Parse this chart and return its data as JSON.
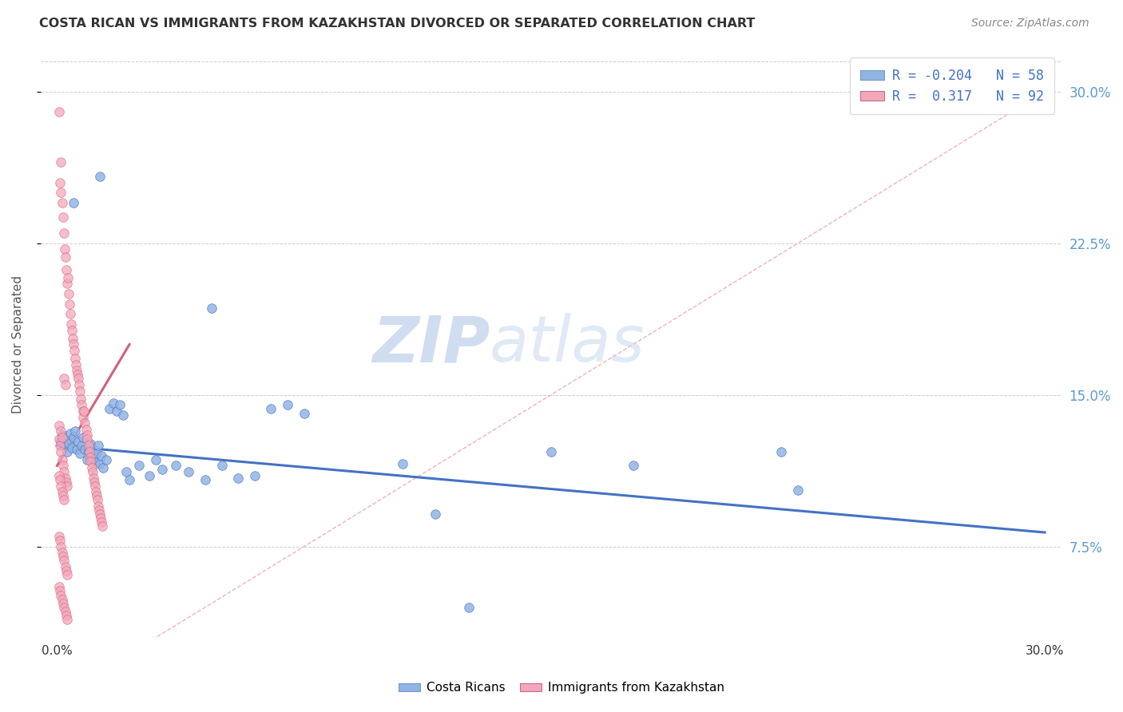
{
  "title": "COSTA RICAN VS IMMIGRANTS FROM KAZAKHSTAN DIVORCED OR SEPARATED CORRELATION CHART",
  "source": "Source: ZipAtlas.com",
  "ylabel": "Divorced or Separated",
  "ytick_labels": [
    "7.5%",
    "15.0%",
    "22.5%",
    "30.0%"
  ],
  "ytick_values": [
    7.5,
    15.0,
    22.5,
    30.0
  ],
  "xrange": [
    0.0,
    30.0
  ],
  "yrange": [
    3.0,
    32.0
  ],
  "ymin_plot": 3.0,
  "ymax_plot": 32.0,
  "legend_blue_R": "R = -0.204",
  "legend_blue_N": "N = 58",
  "legend_pink_R": "R =  0.317",
  "legend_pink_N": "N = 92",
  "legend_label_blue": "Costa Ricans",
  "legend_label_pink": "Immigrants from Kazakhstan",
  "color_blue": "#92B4E3",
  "color_pink": "#F4A7B9",
  "color_trend_blue": "#4472C4",
  "color_trend_pink": "#D4607A",
  "color_diagonal": "#E8A0B0",
  "watermark_zip": "ZIP",
  "watermark_atlas": "atlas",
  "blue_trend_x": [
    0.0,
    30.0
  ],
  "blue_trend_y": [
    12.5,
    8.2
  ],
  "pink_trend_x": [
    0.0,
    2.2
  ],
  "pink_trend_y": [
    11.5,
    17.5
  ],
  "blue_points": [
    [
      0.1,
      12.7
    ],
    [
      0.15,
      13.0
    ],
    [
      0.2,
      12.5
    ],
    [
      0.25,
      12.8
    ],
    [
      0.3,
      12.2
    ],
    [
      0.35,
      12.6
    ],
    [
      0.4,
      13.1
    ],
    [
      0.45,
      12.4
    ],
    [
      0.5,
      12.9
    ],
    [
      0.55,
      13.2
    ],
    [
      0.6,
      12.3
    ],
    [
      0.65,
      12.7
    ],
    [
      0.7,
      12.1
    ],
    [
      0.75,
      12.5
    ],
    [
      0.8,
      12.9
    ],
    [
      0.85,
      12.3
    ],
    [
      0.9,
      11.8
    ],
    [
      0.95,
      12.2
    ],
    [
      1.0,
      12.6
    ],
    [
      1.05,
      11.9
    ],
    [
      1.1,
      12.3
    ],
    [
      1.15,
      11.7
    ],
    [
      1.2,
      12.1
    ],
    [
      1.25,
      12.5
    ],
    [
      1.3,
      11.6
    ],
    [
      1.35,
      12.0
    ],
    [
      1.4,
      11.4
    ],
    [
      1.5,
      11.8
    ],
    [
      1.6,
      14.3
    ],
    [
      1.7,
      14.6
    ],
    [
      1.8,
      14.2
    ],
    [
      1.9,
      14.5
    ],
    [
      2.0,
      14.0
    ],
    [
      2.1,
      11.2
    ],
    [
      2.2,
      10.8
    ],
    [
      2.5,
      11.5
    ],
    [
      2.8,
      11.0
    ],
    [
      3.0,
      11.8
    ],
    [
      3.2,
      11.3
    ],
    [
      3.6,
      11.5
    ],
    [
      4.0,
      11.2
    ],
    [
      4.5,
      10.8
    ],
    [
      5.0,
      11.5
    ],
    [
      5.5,
      10.9
    ],
    [
      6.0,
      11.0
    ],
    [
      6.5,
      14.3
    ],
    [
      7.0,
      14.5
    ],
    [
      7.5,
      14.1
    ],
    [
      0.5,
      24.5
    ],
    [
      1.3,
      25.8
    ],
    [
      4.7,
      19.3
    ],
    [
      10.5,
      11.6
    ],
    [
      11.5,
      9.1
    ],
    [
      12.5,
      4.5
    ],
    [
      15.0,
      12.2
    ],
    [
      17.5,
      11.5
    ],
    [
      22.0,
      12.2
    ],
    [
      22.5,
      10.3
    ]
  ],
  "pink_points": [
    [
      0.05,
      29.0
    ],
    [
      0.08,
      25.5
    ],
    [
      0.1,
      26.5
    ],
    [
      0.12,
      25.0
    ],
    [
      0.15,
      24.5
    ],
    [
      0.18,
      23.8
    ],
    [
      0.2,
      23.0
    ],
    [
      0.22,
      22.2
    ],
    [
      0.25,
      21.8
    ],
    [
      0.28,
      21.2
    ],
    [
      0.3,
      20.5
    ],
    [
      0.32,
      20.8
    ],
    [
      0.35,
      20.0
    ],
    [
      0.38,
      19.5
    ],
    [
      0.4,
      19.0
    ],
    [
      0.42,
      18.5
    ],
    [
      0.45,
      18.2
    ],
    [
      0.48,
      17.8
    ],
    [
      0.5,
      17.5
    ],
    [
      0.52,
      17.2
    ],
    [
      0.55,
      16.8
    ],
    [
      0.58,
      16.5
    ],
    [
      0.6,
      16.2
    ],
    [
      0.62,
      16.0
    ],
    [
      0.65,
      15.8
    ],
    [
      0.68,
      15.5
    ],
    [
      0.7,
      15.2
    ],
    [
      0.72,
      14.8
    ],
    [
      0.75,
      14.5
    ],
    [
      0.78,
      14.2
    ],
    [
      0.8,
      13.9
    ],
    [
      0.82,
      14.2
    ],
    [
      0.85,
      13.6
    ],
    [
      0.88,
      13.3
    ],
    [
      0.9,
      13.0
    ],
    [
      0.92,
      12.8
    ],
    [
      0.95,
      12.5
    ],
    [
      0.98,
      12.2
    ],
    [
      1.0,
      11.9
    ],
    [
      1.02,
      11.7
    ],
    [
      1.05,
      11.4
    ],
    [
      1.08,
      11.2
    ],
    [
      1.1,
      10.9
    ],
    [
      1.12,
      10.7
    ],
    [
      1.15,
      10.5
    ],
    [
      1.18,
      10.2
    ],
    [
      1.2,
      10.0
    ],
    [
      1.22,
      9.8
    ],
    [
      1.25,
      9.5
    ],
    [
      1.28,
      9.3
    ],
    [
      1.3,
      9.1
    ],
    [
      1.32,
      8.9
    ],
    [
      1.35,
      8.7
    ],
    [
      1.38,
      8.5
    ],
    [
      0.05,
      12.8
    ],
    [
      0.08,
      12.5
    ],
    [
      0.1,
      12.2
    ],
    [
      0.15,
      11.8
    ],
    [
      0.18,
      11.5
    ],
    [
      0.2,
      11.2
    ],
    [
      0.25,
      10.9
    ],
    [
      0.28,
      10.7
    ],
    [
      0.3,
      10.5
    ],
    [
      0.05,
      11.0
    ],
    [
      0.08,
      10.8
    ],
    [
      0.1,
      10.5
    ],
    [
      0.15,
      10.2
    ],
    [
      0.18,
      10.0
    ],
    [
      0.2,
      9.8
    ],
    [
      0.05,
      8.0
    ],
    [
      0.08,
      7.8
    ],
    [
      0.1,
      7.5
    ],
    [
      0.15,
      7.2
    ],
    [
      0.18,
      7.0
    ],
    [
      0.2,
      6.8
    ],
    [
      0.25,
      6.5
    ],
    [
      0.28,
      6.3
    ],
    [
      0.3,
      6.1
    ],
    [
      0.05,
      5.5
    ],
    [
      0.08,
      5.3
    ],
    [
      0.1,
      5.1
    ],
    [
      0.15,
      4.9
    ],
    [
      0.18,
      4.7
    ],
    [
      0.2,
      4.5
    ],
    [
      0.25,
      4.3
    ],
    [
      0.28,
      4.1
    ],
    [
      0.3,
      3.9
    ],
    [
      0.05,
      13.5
    ],
    [
      0.1,
      13.2
    ],
    [
      0.15,
      12.9
    ],
    [
      0.2,
      15.8
    ],
    [
      0.25,
      15.5
    ]
  ]
}
